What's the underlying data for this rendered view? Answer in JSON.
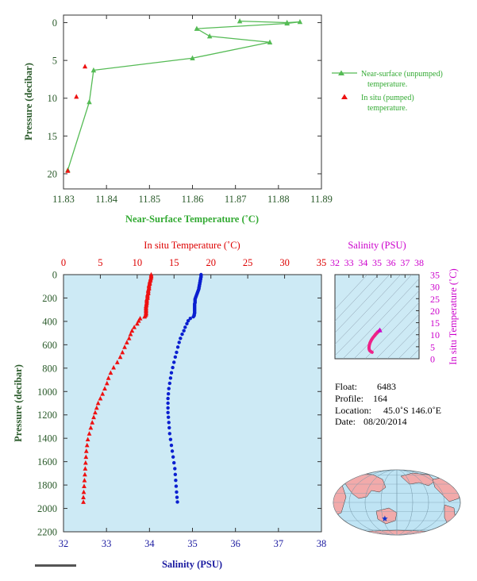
{
  "colors": {
    "green": "#55bb55",
    "green_text": "#33aa33",
    "dark_green_text": "#2a5a2a",
    "red": "#ee1111",
    "red_text": "#dd0000",
    "blue": "#0a1fd0",
    "blue_text": "#1a1aa0",
    "magenta": "#cc00cc",
    "pink_marker": "#ee2288",
    "plot_bg": "#cdeaf5",
    "axis": "#333333"
  },
  "chart_data": [
    {
      "id": "near_surface",
      "type": "line",
      "xlabel": "Near-Surface Temperature (˚C)",
      "ylabel": "Pressure (decibar)",
      "xlim": [
        11.83,
        11.89
      ],
      "ylim": [
        22,
        -1
      ],
      "x_ticks": [
        "11.83",
        "11.84",
        "11.85",
        "11.86",
        "11.87",
        "11.88",
        "11.89"
      ],
      "y_ticks": [
        "0",
        "5",
        "10",
        "15",
        "20"
      ],
      "legend_position": "right",
      "series": [
        {
          "name": "Near-surface (unpumped)\ntemperature.",
          "marker": "triangle",
          "connected": true,
          "points": [
            [
              11.871,
              -0.2
            ],
            [
              11.882,
              0.0
            ],
            [
              11.885,
              -0.1
            ],
            [
              11.882,
              0.1
            ],
            [
              11.861,
              0.8
            ],
            [
              11.864,
              1.8
            ],
            [
              11.878,
              2.6
            ],
            [
              11.86,
              4.7
            ],
            [
              11.837,
              6.3
            ],
            [
              11.836,
              10.5
            ],
            [
              11.831,
              19.5
            ]
          ]
        },
        {
          "name": "In situ (pumped)\ntemperature.",
          "marker": "triangle",
          "connected": false,
          "points": [
            [
              11.835,
              5.8
            ],
            [
              11.833,
              9.8
            ],
            [
              11.831,
              19.6
            ]
          ]
        }
      ]
    },
    {
      "id": "profile",
      "type": "scatter",
      "ylabel": "Pressure (decibar)",
      "xlabel_bottom": "Salinity (PSU)",
      "xlabel_top": "In situ Temperature (˚C)",
      "salinity_lim": [
        32,
        38
      ],
      "temperature_lim": [
        0,
        35
      ],
      "pressure_lim": [
        0,
        2200
      ],
      "salinity_ticks": [
        "32",
        "33",
        "34",
        "35",
        "36",
        "37",
        "38"
      ],
      "temperature_ticks": [
        "0",
        "5",
        "10",
        "15",
        "20",
        "25",
        "30",
        "35"
      ],
      "pressure_ticks": [
        "0",
        "200",
        "400",
        "600",
        "800",
        "1000",
        "1200",
        "1400",
        "1600",
        "1800",
        "2000",
        "2200"
      ],
      "temperature_series": {
        "name": "In situ Temperature",
        "marker": "triangle",
        "points": [
          [
            11.9,
            0
          ],
          [
            11.9,
            10
          ],
          [
            11.9,
            20
          ],
          [
            11.85,
            30
          ],
          [
            11.8,
            40
          ],
          [
            11.8,
            50
          ],
          [
            11.7,
            60
          ],
          [
            11.7,
            70
          ],
          [
            11.7,
            80
          ],
          [
            11.6,
            90
          ],
          [
            11.6,
            100
          ],
          [
            11.6,
            110
          ],
          [
            11.6,
            120
          ],
          [
            11.5,
            130
          ],
          [
            11.5,
            140
          ],
          [
            11.5,
            150
          ],
          [
            11.5,
            160
          ],
          [
            11.4,
            170
          ],
          [
            11.4,
            180
          ],
          [
            11.4,
            190
          ],
          [
            11.4,
            200
          ],
          [
            11.3,
            210
          ],
          [
            11.3,
            220
          ],
          [
            11.3,
            230
          ],
          [
            11.3,
            240
          ],
          [
            11.25,
            250
          ],
          [
            11.25,
            260
          ],
          [
            11.2,
            270
          ],
          [
            11.2,
            280
          ],
          [
            11.2,
            290
          ],
          [
            11.2,
            300
          ],
          [
            11.2,
            310
          ],
          [
            11.2,
            320
          ],
          [
            11.2,
            330
          ],
          [
            11.2,
            340
          ],
          [
            11.1,
            350
          ],
          [
            11.0,
            360
          ],
          [
            10.4,
            375
          ],
          [
            10.2,
            395
          ],
          [
            10.0,
            420
          ],
          [
            9.6,
            450
          ],
          [
            9.3,
            480
          ],
          [
            9.1,
            510
          ],
          [
            8.9,
            545
          ],
          [
            8.6,
            580
          ],
          [
            8.3,
            620
          ],
          [
            8.0,
            665
          ],
          [
            7.7,
            705
          ],
          [
            7.3,
            750
          ],
          [
            6.8,
            795
          ],
          [
            6.4,
            840
          ],
          [
            6.1,
            885
          ],
          [
            5.9,
            930
          ],
          [
            5.6,
            975
          ],
          [
            5.3,
            1020
          ],
          [
            5.0,
            1060
          ],
          [
            4.7,
            1100
          ],
          [
            4.5,
            1140
          ],
          [
            4.3,
            1180
          ],
          [
            4.1,
            1220
          ],
          [
            3.9,
            1265
          ],
          [
            3.7,
            1310
          ],
          [
            3.5,
            1360
          ],
          [
            3.3,
            1410
          ],
          [
            3.2,
            1460
          ],
          [
            3.1,
            1510
          ],
          [
            3.05,
            1560
          ],
          [
            3.0,
            1610
          ],
          [
            2.95,
            1660
          ],
          [
            2.9,
            1710
          ],
          [
            2.85,
            1760
          ],
          [
            2.8,
            1810
          ],
          [
            2.75,
            1860
          ],
          [
            2.7,
            1905
          ],
          [
            2.7,
            1945
          ]
        ]
      },
      "salinity_series": {
        "name": "Salinity",
        "marker": "circle",
        "points": [
          [
            35.2,
            0
          ],
          [
            35.2,
            10
          ],
          [
            35.2,
            20
          ],
          [
            35.19,
            30
          ],
          [
            35.19,
            40
          ],
          [
            35.18,
            50
          ],
          [
            35.18,
            60
          ],
          [
            35.17,
            70
          ],
          [
            35.17,
            80
          ],
          [
            35.16,
            90
          ],
          [
            35.16,
            100
          ],
          [
            35.15,
            110
          ],
          [
            35.15,
            120
          ],
          [
            35.14,
            130
          ],
          [
            35.13,
            140
          ],
          [
            35.12,
            150
          ],
          [
            35.11,
            160
          ],
          [
            35.1,
            170
          ],
          [
            35.09,
            180
          ],
          [
            35.08,
            190
          ],
          [
            35.07,
            200
          ],
          [
            35.06,
            210
          ],
          [
            35.06,
            220
          ],
          [
            35.06,
            230
          ],
          [
            35.06,
            240
          ],
          [
            35.05,
            250
          ],
          [
            35.05,
            260
          ],
          [
            35.05,
            270
          ],
          [
            35.05,
            280
          ],
          [
            35.05,
            290
          ],
          [
            35.05,
            300
          ],
          [
            35.05,
            310
          ],
          [
            35.05,
            320
          ],
          [
            35.05,
            330
          ],
          [
            35.04,
            340
          ],
          [
            35.04,
            350
          ],
          [
            35.02,
            360
          ],
          [
            34.95,
            375
          ],
          [
            34.9,
            395
          ],
          [
            34.87,
            420
          ],
          [
            34.83,
            450
          ],
          [
            34.8,
            480
          ],
          [
            34.76,
            510
          ],
          [
            34.72,
            545
          ],
          [
            34.69,
            580
          ],
          [
            34.66,
            620
          ],
          [
            34.63,
            665
          ],
          [
            34.6,
            705
          ],
          [
            34.57,
            750
          ],
          [
            34.54,
            795
          ],
          [
            34.51,
            840
          ],
          [
            34.49,
            885
          ],
          [
            34.47,
            930
          ],
          [
            34.45,
            975
          ],
          [
            34.44,
            1020
          ],
          [
            34.43,
            1060
          ],
          [
            34.43,
            1100
          ],
          [
            34.43,
            1140
          ],
          [
            34.43,
            1180
          ],
          [
            34.44,
            1220
          ],
          [
            34.45,
            1265
          ],
          [
            34.46,
            1310
          ],
          [
            34.47,
            1360
          ],
          [
            34.49,
            1410
          ],
          [
            34.51,
            1460
          ],
          [
            34.53,
            1510
          ],
          [
            34.55,
            1560
          ],
          [
            34.57,
            1610
          ],
          [
            34.59,
            1660
          ],
          [
            34.6,
            1710
          ],
          [
            34.61,
            1760
          ],
          [
            34.62,
            1810
          ],
          [
            34.63,
            1860
          ],
          [
            34.64,
            1905
          ],
          [
            34.65,
            1945
          ]
        ]
      }
    },
    {
      "id": "ts_diagram",
      "type": "line",
      "xlabel_top": "Salinity (PSU)",
      "ylabel_right": "In situ Temperature (˚C)",
      "salinity_lim": [
        32,
        38
      ],
      "temperature_lim": [
        0,
        35
      ],
      "salinity_ticks": [
        "32",
        "33",
        "34",
        "35",
        "36",
        "37",
        "38"
      ],
      "temperature_ticks": [
        "0",
        "5",
        "10",
        "15",
        "20",
        "25",
        "30",
        "35"
      ],
      "points": [
        [
          35.2,
          11.9
        ],
        [
          35.15,
          11.6
        ],
        [
          35.1,
          11.3
        ],
        [
          35.05,
          11.2
        ],
        [
          35.0,
          10.8
        ],
        [
          34.9,
          10.2
        ],
        [
          34.8,
          9.4
        ],
        [
          34.7,
          8.7
        ],
        [
          34.6,
          7.8
        ],
        [
          34.5,
          6.6
        ],
        [
          34.45,
          5.6
        ],
        [
          34.43,
          4.6
        ],
        [
          34.44,
          4.0
        ],
        [
          34.47,
          3.5
        ],
        [
          34.53,
          3.1
        ],
        [
          34.6,
          2.9
        ],
        [
          34.65,
          2.7
        ]
      ]
    }
  ],
  "info": {
    "float_label": "Float:",
    "float_value": "6483",
    "profile_label": "Profile:",
    "profile_value": "164",
    "location_label": "Location:",
    "location_value": "45.0˚S 146.0˚E",
    "date_label": "Date:",
    "date_value": "08/20/2014"
  },
  "map": {
    "marker_lat": -45.0,
    "marker_lon": 146.0,
    "marker_symbol": "star"
  }
}
